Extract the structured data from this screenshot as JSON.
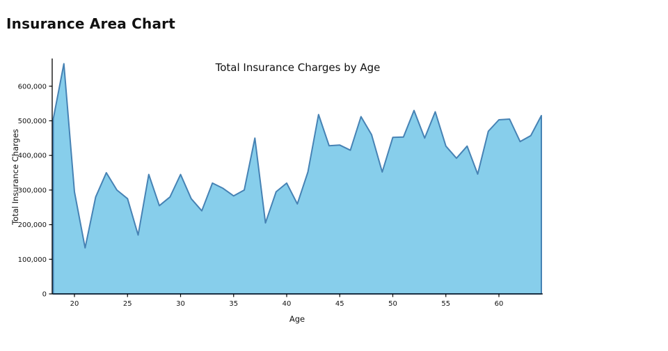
{
  "page": {
    "title": "Insurance Area Chart"
  },
  "chart_data": {
    "type": "area",
    "title": "Total Insurance Charges by Age",
    "xlabel": "Age",
    "ylabel": "Total Insurance Charges",
    "x": [
      18,
      19,
      20,
      21,
      22,
      23,
      24,
      25,
      26,
      27,
      28,
      29,
      30,
      31,
      32,
      33,
      34,
      35,
      36,
      37,
      38,
      39,
      40,
      41,
      42,
      43,
      44,
      45,
      46,
      47,
      48,
      49,
      50,
      51,
      52,
      53,
      54,
      55,
      56,
      57,
      58,
      59,
      60,
      61,
      62,
      63,
      64
    ],
    "values": [
      505000,
      665000,
      295000,
      133000,
      280000,
      350000,
      300000,
      275000,
      170000,
      345000,
      255000,
      280000,
      345000,
      275000,
      240000,
      320000,
      305000,
      283000,
      300000,
      450000,
      205000,
      295000,
      320000,
      260000,
      352000,
      518000,
      428000,
      430000,
      415000,
      512000,
      460000,
      352000,
      452000,
      453000,
      530000,
      450000,
      526000,
      427000,
      392000,
      427000,
      346000,
      470000,
      503000,
      505000,
      440000,
      457000,
      515000
    ],
    "xlim": [
      18,
      64
    ],
    "ylim": [
      0,
      680000
    ],
    "x_ticks": [
      20,
      25,
      30,
      35,
      40,
      45,
      50,
      55,
      60
    ],
    "y_ticks": [
      0,
      100000,
      200000,
      300000,
      400000,
      500000,
      600000
    ],
    "grid": false,
    "legend_position": "none",
    "fill_color": "#87CEEB",
    "line_color": "#4682B4",
    "axis_color": "#000000",
    "text_color": "#111111"
  }
}
